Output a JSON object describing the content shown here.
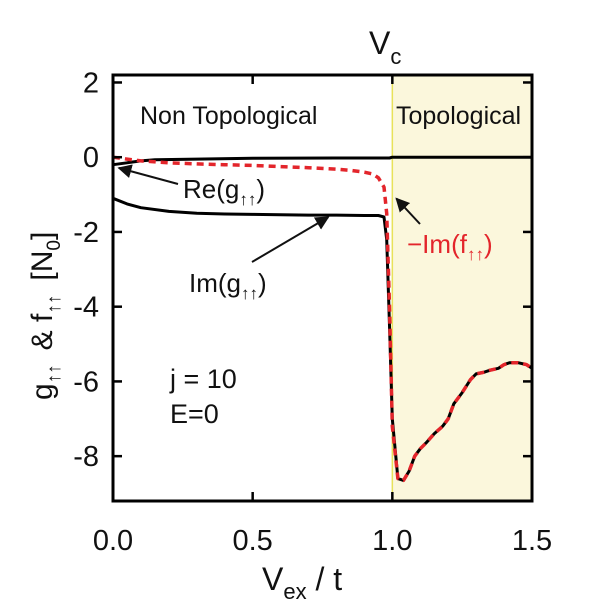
{
  "chart_data": {
    "type": "line",
    "x_label": {
      "main": "V",
      "sub": "ex",
      "rest": " / t"
    },
    "y_label": {
      "p1": "g",
      "p1_sub": "↑↑",
      "p2": "& f",
      "p2_sub": "↑↑",
      "p3": "[N",
      "p3_sub": "0",
      "p4": "]"
    },
    "xlim": [
      0.0,
      1.5
    ],
    "ylim": [
      -9.2,
      2.2
    ],
    "x_ticks": [
      "0.0",
      "0.5",
      "1.0",
      "1.5"
    ],
    "x_tick_values": [
      0.0,
      0.5,
      1.0,
      1.5
    ],
    "y_ticks": [
      "2",
      "0",
      "-2",
      "-4",
      "-6",
      "-8"
    ],
    "y_tick_values": [
      2,
      0,
      -2,
      -4,
      -6,
      -8
    ],
    "critical_line": {
      "main": "V",
      "sub": "c",
      "x": 1.0
    },
    "regions": [
      {
        "label": "Non Topological",
        "x_range": [
          0.0,
          1.0
        ],
        "color": "#ffffff"
      },
      {
        "label": "Topological",
        "x_range": [
          1.0,
          1.5
        ],
        "color": "#fbf7dc"
      }
    ],
    "params": [
      "j = 10",
      "E=0"
    ],
    "series": [
      {
        "name": "Re(g↑↑)",
        "color": "#000000",
        "dash": false,
        "x": [
          0.0,
          0.05,
          0.1,
          0.15,
          0.3,
          0.5,
          0.8,
          0.99,
          1.0,
          1.2,
          1.5
        ],
        "y": [
          -0.2,
          -0.15,
          -0.1,
          -0.07,
          -0.05,
          -0.03,
          -0.02,
          -0.02,
          0.0,
          0.0,
          0.0
        ]
      },
      {
        "name": "Im(g↑↑)",
        "color": "#000000",
        "dash": false,
        "x": [
          0.0,
          0.05,
          0.1,
          0.2,
          0.3,
          0.4,
          0.5,
          0.6,
          0.7,
          0.8,
          0.9,
          0.95,
          0.97,
          0.98,
          0.99,
          1.0,
          1.02,
          1.04,
          1.06,
          1.08,
          1.1,
          1.12,
          1.15,
          1.18,
          1.2,
          1.22,
          1.25,
          1.28,
          1.3,
          1.33,
          1.35,
          1.38,
          1.4,
          1.42,
          1.45,
          1.48,
          1.5
        ],
        "y": [
          -1.1,
          -1.25,
          -1.35,
          -1.45,
          -1.5,
          -1.52,
          -1.53,
          -1.54,
          -1.55,
          -1.55,
          -1.56,
          -1.56,
          -1.6,
          -2.2,
          -4.5,
          -7.0,
          -8.6,
          -8.65,
          -8.4,
          -8.0,
          -7.8,
          -7.65,
          -7.4,
          -7.2,
          -7.0,
          -6.6,
          -6.3,
          -5.95,
          -5.8,
          -5.75,
          -5.7,
          -5.65,
          -5.55,
          -5.5,
          -5.5,
          -5.55,
          -5.65
        ]
      },
      {
        "name": "−Im(f↑↑)",
        "color": "#e3252b",
        "dash": true,
        "x": [
          0.0,
          0.05,
          0.1,
          0.2,
          0.3,
          0.4,
          0.5,
          0.6,
          0.7,
          0.8,
          0.85,
          0.9,
          0.93,
          0.95,
          0.97,
          0.98,
          0.99,
          1.0,
          1.02,
          1.04,
          1.06,
          1.08,
          1.1,
          1.12,
          1.15,
          1.18,
          1.2,
          1.22,
          1.25,
          1.28,
          1.3,
          1.33,
          1.35,
          1.38,
          1.4,
          1.42,
          1.45,
          1.48,
          1.5
        ],
        "y": [
          0.0,
          -0.05,
          -0.1,
          -0.15,
          -0.18,
          -0.2,
          -0.22,
          -0.25,
          -0.28,
          -0.32,
          -0.35,
          -0.4,
          -0.45,
          -0.55,
          -0.8,
          -1.5,
          -4.0,
          -7.2,
          -8.6,
          -8.65,
          -8.4,
          -8.0,
          -7.8,
          -7.65,
          -7.4,
          -7.2,
          -7.0,
          -6.6,
          -6.3,
          -5.95,
          -5.8,
          -5.75,
          -5.7,
          -5.65,
          -5.55,
          -5.5,
          -5.5,
          -5.55,
          -5.65
        ]
      }
    ],
    "annotations": [
      {
        "main": "Re(g",
        "sub": "↑↑",
        "tail": ")",
        "color": "#111111",
        "pointer_to": [
          0.01,
          -0.18
        ]
      },
      {
        "main": "Im(g",
        "sub": "↑↑",
        "tail": ")",
        "color": "#111111",
        "pointer_to": [
          0.76,
          -1.55
        ]
      },
      {
        "main": "−Im(f",
        "sub": "↑↑",
        "tail": ")",
        "color": "#e3252b",
        "pointer_to": [
          1.0,
          -1.0
        ]
      }
    ]
  }
}
